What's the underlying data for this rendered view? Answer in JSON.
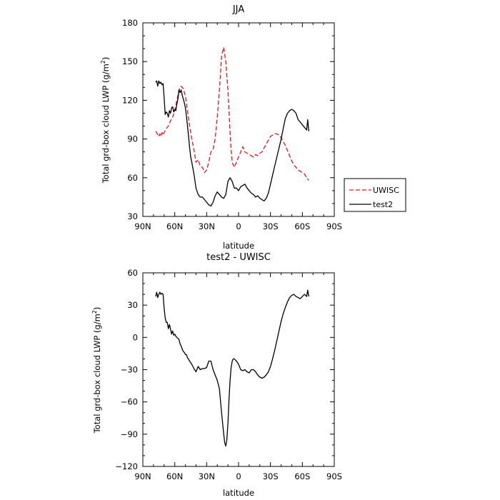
{
  "chart_data": [
    {
      "type": "line",
      "title": "JJA",
      "xlabel": "latitude",
      "ylabel": "Total grd-box cloud LWP (g/m",
      "ylabel_sup": "2",
      "ylabel_end": ")",
      "xlim": [
        90,
        -90
      ],
      "ylim": [
        30,
        180
      ],
      "x_ticks": [
        90,
        60,
        30,
        0,
        -30,
        -60,
        -90
      ],
      "x_tick_labels": [
        "90N",
        "60N",
        "30N",
        "0",
        "30S",
        "60S",
        "90S"
      ],
      "y_ticks": [
        30,
        60,
        90,
        120,
        150,
        180
      ],
      "y_tick_labels": [
        "30",
        "60",
        "90",
        "120",
        "150",
        "180"
      ],
      "legend": [
        "UWISC",
        "test2"
      ],
      "legend_position": "right",
      "series": [
        {
          "name": "UWISC",
          "color": "#e8141c",
          "dash": "dashed",
          "x": [
            78,
            77,
            76,
            75,
            74,
            73,
            72,
            71,
            70,
            68,
            66,
            64,
            62,
            60,
            58,
            56,
            54,
            52,
            50,
            48,
            46,
            44,
            42,
            40,
            38,
            36,
            34,
            32,
            30,
            28,
            26,
            24,
            22,
            20,
            18,
            16,
            14,
            12,
            10,
            9,
            8,
            7,
            6,
            5,
            4,
            3,
            2,
            1,
            0,
            -2,
            -4,
            -6,
            -8,
            -10,
            -12,
            -14,
            -16,
            -18,
            -20,
            -22,
            -24,
            -26,
            -28,
            -30,
            -32,
            -34,
            -36,
            -38,
            -40,
            -42,
            -44,
            -46,
            -48,
            -50,
            -52,
            -54,
            -56,
            -58,
            -60,
            -62,
            -64,
            -66
          ],
          "y": [
            96,
            95,
            93,
            92,
            94,
            92,
            95,
            93,
            95,
            98,
            100,
            104,
            107,
            112,
            120,
            128,
            131,
            129,
            123,
            112,
            100,
            90,
            82,
            72,
            74,
            69,
            68,
            64,
            66,
            72,
            80,
            82,
            90,
            107,
            128,
            154,
            161,
            150,
            128,
            112,
            95,
            82,
            72,
            70,
            68,
            70,
            72,
            74,
            76,
            80,
            84,
            80,
            79,
            78,
            77,
            76,
            78,
            77,
            79,
            80,
            83,
            86,
            89,
            92,
            93,
            94,
            94,
            93,
            91,
            88,
            85,
            81,
            77,
            73,
            70,
            68,
            66,
            65,
            64,
            63,
            60,
            58
          ]
        },
        {
          "name": "test2",
          "color": "#000000",
          "dash": "solid",
          "x": [
            78,
            77,
            76,
            75,
            74,
            73,
            72,
            71,
            70,
            69,
            68,
            67,
            66,
            65,
            64,
            63,
            62,
            61,
            60,
            59,
            58,
            57,
            56,
            55,
            54,
            53,
            52,
            51,
            50,
            49,
            48,
            47,
            46,
            45,
            44,
            42,
            40,
            38,
            36,
            34,
            32,
            30,
            28,
            26,
            24,
            22,
            20,
            18,
            16,
            14,
            12,
            10,
            8,
            6,
            4,
            2,
            0,
            -2,
            -4,
            -6,
            -8,
            -10,
            -12,
            -14,
            -16,
            -18,
            -20,
            -22,
            -24,
            -26,
            -28,
            -30,
            -32,
            -34,
            -36,
            -38,
            -40,
            -42,
            -44,
            -46,
            -48,
            -50,
            -52,
            -54,
            -56,
            -58,
            -60,
            -62,
            -64,
            -65,
            -66
          ],
          "y": [
            134,
            135,
            131,
            135,
            133,
            134,
            132,
            133,
            122,
            109,
            111,
            110,
            107,
            112,
            110,
            114,
            115,
            111,
            113,
            112,
            117,
            121,
            128,
            126,
            128,
            124,
            121,
            118,
            114,
            108,
            100,
            92,
            83,
            76,
            72,
            63,
            52,
            47,
            45,
            45,
            43,
            41,
            39,
            38,
            41,
            46,
            49,
            47,
            45,
            44,
            47,
            57,
            60,
            57,
            52,
            52,
            50,
            53,
            54,
            55,
            52,
            50,
            48,
            47,
            45,
            46,
            44,
            43,
            42,
            44,
            48,
            55,
            62,
            69,
            76,
            83,
            90,
            98,
            106,
            110,
            112,
            113,
            112,
            110,
            105,
            103,
            101,
            99,
            97,
            105,
            96
          ]
        }
      ]
    },
    {
      "type": "line",
      "title": "test2 - UWISC",
      "xlabel": "latitude",
      "ylabel": "Total grd-box cloud LWP (g/m",
      "ylabel_sup": "2",
      "ylabel_end": ")",
      "xlim": [
        90,
        -90
      ],
      "ylim": [
        -120,
        60
      ],
      "x_ticks": [
        90,
        60,
        30,
        0,
        -30,
        -60,
        -90
      ],
      "x_tick_labels": [
        "90N",
        "60N",
        "30N",
        "0",
        "30S",
        "60S",
        "90S"
      ],
      "y_ticks": [
        -120,
        -90,
        -60,
        -30,
        0,
        30,
        60
      ],
      "y_tick_labels": [
        "−120",
        "−90",
        "−60",
        "−30",
        "0",
        "30",
        "60"
      ],
      "series": [
        {
          "color": "#000000",
          "dash": "solid",
          "x": [
            78,
            77,
            76,
            75,
            74,
            73,
            72,
            71,
            70,
            69,
            68,
            67,
            66,
            65,
            64,
            63,
            62,
            61,
            60,
            59,
            58,
            57,
            56,
            55,
            54,
            53,
            52,
            51,
            50,
            49,
            48,
            46,
            44,
            42,
            40,
            38,
            36,
            34,
            32,
            30,
            28,
            26,
            24,
            22,
            20,
            18,
            16,
            14,
            13,
            12,
            11,
            10,
            9,
            8,
            7,
            6,
            5,
            4,
            3,
            2,
            0,
            -2,
            -4,
            -6,
            -8,
            -10,
            -12,
            -14,
            -16,
            -18,
            -20,
            -22,
            -24,
            -26,
            -28,
            -30,
            -32,
            -34,
            -36,
            -38,
            -40,
            -42,
            -44,
            -46,
            -48,
            -50,
            -52,
            -54,
            -56,
            -58,
            -60,
            -62,
            -64,
            -65,
            -66
          ],
          "y": [
            38,
            42,
            37,
            40,
            42,
            40,
            41,
            40,
            27,
            18,
            14,
            14,
            8,
            12,
            8,
            3,
            6,
            2,
            3,
            1,
            0,
            -1,
            -2,
            -6,
            -8,
            -11,
            -13,
            -14,
            -16,
            -16,
            -19,
            -22,
            -25,
            -29,
            -32,
            -27,
            -30,
            -29,
            -29,
            -28,
            -22,
            -22,
            -30,
            -35,
            -40,
            -48,
            -70,
            -90,
            -98,
            -101,
            -95,
            -80,
            -58,
            -40,
            -28,
            -22,
            -20,
            -20,
            -21,
            -22,
            -25,
            -30,
            -31,
            -30,
            -32,
            -33,
            -30,
            -30,
            -32,
            -35,
            -37,
            -38,
            -37,
            -35,
            -32,
            -27,
            -20,
            -12,
            -3,
            6,
            15,
            22,
            28,
            33,
            37,
            39,
            40,
            38,
            37,
            36,
            38,
            40,
            38,
            44,
            38
          ]
        }
      ]
    }
  ]
}
